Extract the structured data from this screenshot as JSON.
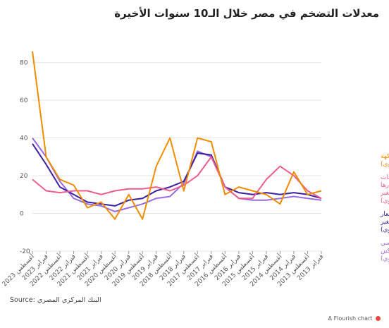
{
  "chart_data": {
    "type": "line",
    "title": "معدلات التضخم في مصر خلال الـ10 سنوات الأخيرة",
    "ylim": [
      -20,
      90
    ],
    "yticks": [
      -20,
      0,
      20,
      40,
      60,
      80
    ],
    "x_direction": "right-to-left",
    "x_ticks": [
      "فبراير 2013",
      "أغسطس 2013",
      "فبراير 2014",
      "أغسطس 2014",
      "فبراير 2015",
      "أغسطس 2015",
      "فبراير 2016",
      "أغسطس 2016",
      "فبراير 2017",
      "أغسطس 2017",
      "فبراير 2018",
      "أغسطس 2018",
      "فبراير 2019",
      "أغسطس 2019",
      "فبراير 2020",
      "أغسطس 2020",
      "فبراير 2021",
      "أغسطس 2021",
      "فبراير 2022",
      "أغسطس 2022",
      "فبراير 2023",
      "أغسطس 2023"
    ],
    "x": [
      "2013-02",
      "2013-08",
      "2014-02",
      "2014-08",
      "2015-02",
      "2015-08",
      "2016-02",
      "2016-08",
      "2017-02",
      "2017-08",
      "2018-02",
      "2018-08",
      "2019-02",
      "2019-08",
      "2020-02",
      "2020-08",
      "2021-02",
      "2021-08",
      "2022-02",
      "2022-08",
      "2023-02",
      "2023-08"
    ],
    "series": [
      {
        "name": "الخضروات و الفاكهة (التغير السنوي)",
        "color": "#f08c00",
        "values": [
          12,
          10,
          22,
          5,
          10,
          12,
          14,
          10,
          38,
          40,
          12,
          40,
          25,
          -3,
          10,
          -3,
          6,
          3,
          15,
          18,
          30,
          86
        ]
      },
      {
        "name": "السلع والخدمات المحدد أسعارها إداريا (التغير السنوي)",
        "color": "#ec5d8e",
        "values": [
          8,
          12,
          20,
          25,
          18,
          8,
          8,
          14,
          30,
          20,
          15,
          12,
          14,
          13,
          13,
          12,
          10,
          12,
          12,
          11,
          12,
          18
        ]
      },
      {
        "name": "الرقم العام لأسعار المستهلكين (التغير السنوي)",
        "color": "#3b1fa3",
        "values": [
          8,
          10,
          11,
          10,
          11,
          10,
          11,
          14,
          31,
          32,
          17,
          14,
          12,
          8,
          7,
          4,
          5,
          6,
          10,
          14,
          26,
          37
        ]
      },
      {
        "name": "الرقم الأساسي لأسعار المستهلكين (التغير السنوي)",
        "color": "#9b6ae0",
        "values": [
          7,
          8,
          9,
          8,
          7,
          7,
          8,
          14,
          30,
          33,
          16,
          9,
          8,
          5,
          3,
          1,
          4,
          5,
          8,
          17,
          30,
          40
        ]
      }
    ]
  },
  "source": "Source: البنك المركزي المصري",
  "credit": "A Flourish chart"
}
